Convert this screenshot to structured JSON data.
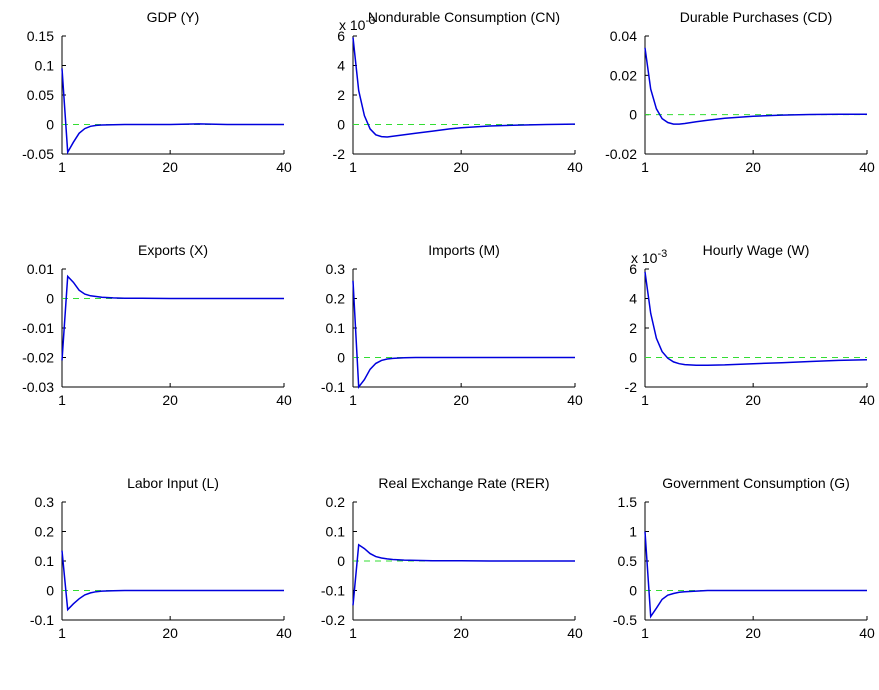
{
  "colors": {
    "series": "#0000dd",
    "zero_line": "#33dd33",
    "axes": "#000000"
  },
  "chart_data": [
    {
      "type": "line",
      "title": "GDP (Y)",
      "xlim": [
        1,
        40
      ],
      "ylim": [
        -0.05,
        0.15
      ],
      "xticks": [
        "1",
        "20",
        "40"
      ],
      "yticks": [
        "-0.05",
        "0",
        "0.05",
        "0.1",
        "0.15"
      ],
      "ytick_values": [
        -0.05,
        0,
        0.05,
        0.1,
        0.15
      ],
      "exponent_label": "",
      "series": [
        {
          "x": [
            1,
            2,
            3,
            4,
            5,
            6,
            7,
            8,
            10,
            12,
            15,
            20,
            25,
            30,
            35,
            40
          ],
          "values": [
            0.095,
            -0.047,
            -0.03,
            -0.015,
            -0.007,
            -0.003,
            -0.0015,
            -0.0008,
            -0.0003,
            0,
            0,
            0,
            0.001,
            0,
            0,
            0
          ]
        }
      ]
    },
    {
      "type": "line",
      "title": "Nondurable Consumption (CN)",
      "xlim": [
        1,
        40
      ],
      "ylim": [
        -2,
        6
      ],
      "xticks": [
        "1",
        "20",
        "40"
      ],
      "yticks": [
        "-2",
        "0",
        "2",
        "4",
        "6"
      ],
      "ytick_values": [
        -2,
        0,
        2,
        4,
        6
      ],
      "exponent_label": "x 10-3",
      "series": [
        {
          "x": [
            1,
            2,
            3,
            4,
            5,
            6,
            7,
            8,
            10,
            12,
            15,
            18,
            20,
            25,
            30,
            35,
            40
          ],
          "values": [
            5.9,
            2.3,
            0.6,
            -0.3,
            -0.7,
            -0.82,
            -0.85,
            -0.8,
            -0.7,
            -0.6,
            -0.45,
            -0.3,
            -0.22,
            -0.1,
            -0.04,
            0,
            0.03
          ]
        }
      ]
    },
    {
      "type": "line",
      "title": "Durable Purchases (CD)",
      "xlim": [
        1,
        40
      ],
      "ylim": [
        -0.02,
        0.04
      ],
      "xticks": [
        "1",
        "20",
        "40"
      ],
      "yticks": [
        "-0.02",
        "0",
        "0.02",
        "0.04"
      ],
      "ytick_values": [
        -0.02,
        0,
        0.02,
        0.04
      ],
      "exponent_label": "",
      "series": [
        {
          "x": [
            1,
            2,
            3,
            4,
            5,
            6,
            7,
            8,
            10,
            12,
            15,
            20,
            25,
            30,
            35,
            40
          ],
          "values": [
            0.034,
            0.013,
            0.003,
            -0.002,
            -0.004,
            -0.0048,
            -0.0048,
            -0.0045,
            -0.0036,
            -0.0028,
            -0.0018,
            -0.0008,
            -0.0002,
            0.0001,
            0.0002,
            0.0002
          ]
        }
      ]
    },
    {
      "type": "line",
      "title": "Exports (X)",
      "xlim": [
        1,
        40
      ],
      "ylim": [
        -0.03,
        0.01
      ],
      "xticks": [
        "1",
        "20",
        "40"
      ],
      "yticks": [
        "-0.03",
        "-0.02",
        "-0.01",
        "0",
        "0.01"
      ],
      "ytick_values": [
        -0.03,
        -0.02,
        -0.01,
        0,
        0.01
      ],
      "exponent_label": "",
      "series": [
        {
          "x": [
            1,
            2,
            3,
            4,
            5,
            6,
            8,
            10,
            12,
            15,
            20,
            25,
            30,
            35,
            40
          ],
          "values": [
            -0.021,
            0.0075,
            0.0055,
            0.0028,
            0.0015,
            0.0009,
            0.0004,
            0.0002,
            0.0001,
            0.0001,
            0,
            0,
            0,
            0,
            0
          ]
        }
      ]
    },
    {
      "type": "line",
      "title": "Imports (M)",
      "xlim": [
        1,
        40
      ],
      "ylim": [
        -0.1,
        0.3
      ],
      "xticks": [
        "1",
        "20",
        "40"
      ],
      "yticks": [
        "-0.1",
        "0",
        "0.1",
        "0.2",
        "0.3"
      ],
      "ytick_values": [
        -0.1,
        0,
        0.1,
        0.2,
        0.3
      ],
      "exponent_label": "",
      "series": [
        {
          "x": [
            1,
            2,
            3,
            4,
            5,
            6,
            7,
            8,
            10,
            12,
            15,
            20,
            25,
            30,
            35,
            40
          ],
          "values": [
            0.26,
            -0.1,
            -0.075,
            -0.04,
            -0.02,
            -0.01,
            -0.005,
            -0.003,
            -0.001,
            0,
            0,
            0,
            0,
            0,
            0,
            0
          ]
        }
      ]
    },
    {
      "type": "line",
      "title": "Hourly Wage (W)",
      "xlim": [
        1,
        40
      ],
      "ylim": [
        -2,
        6
      ],
      "xticks": [
        "1",
        "20",
        "40"
      ],
      "yticks": [
        "-2",
        "0",
        "2",
        "4",
        "6"
      ],
      "ytick_values": [
        -2,
        0,
        2,
        4,
        6
      ],
      "exponent_label": "x 10-3",
      "series": [
        {
          "x": [
            1,
            2,
            3,
            4,
            5,
            6,
            7,
            8,
            10,
            12,
            15,
            20,
            25,
            30,
            35,
            40
          ],
          "values": [
            5.8,
            3.0,
            1.3,
            0.4,
            -0.05,
            -0.3,
            -0.42,
            -0.48,
            -0.52,
            -0.52,
            -0.5,
            -0.42,
            -0.35,
            -0.27,
            -0.2,
            -0.15
          ]
        }
      ]
    },
    {
      "type": "line",
      "title": "Labor Input (L)",
      "xlim": [
        1,
        40
      ],
      "ylim": [
        -0.1,
        0.3
      ],
      "xticks": [
        "1",
        "20",
        "40"
      ],
      "yticks": [
        "-0.1",
        "0",
        "0.1",
        "0.2",
        "0.3"
      ],
      "ytick_values": [
        -0.1,
        0,
        0.1,
        0.2,
        0.3
      ],
      "exponent_label": "",
      "series": [
        {
          "x": [
            1,
            2,
            3,
            4,
            5,
            6,
            7,
            8,
            10,
            12,
            15,
            20,
            25,
            30,
            35,
            40
          ],
          "values": [
            0.135,
            -0.065,
            -0.045,
            -0.028,
            -0.015,
            -0.008,
            -0.004,
            -0.002,
            -0.001,
            0,
            0,
            0,
            0,
            0,
            0,
            0
          ]
        }
      ]
    },
    {
      "type": "line",
      "title": "Real Exchange Rate (RER)",
      "xlim": [
        1,
        40
      ],
      "ylim": [
        -0.2,
        0.2
      ],
      "xticks": [
        "1",
        "20",
        "40"
      ],
      "yticks": [
        "-0.2",
        "-0.1",
        "0",
        "0.1",
        "0.2"
      ],
      "ytick_values": [
        -0.2,
        -0.1,
        0,
        0.1,
        0.2
      ],
      "exponent_label": "",
      "series": [
        {
          "x": [
            1,
            2,
            3,
            4,
            5,
            6,
            7,
            8,
            10,
            12,
            15,
            20,
            25,
            30,
            35,
            40
          ],
          "values": [
            -0.15,
            0.055,
            0.042,
            0.025,
            0.015,
            0.01,
            0.007,
            0.005,
            0.003,
            0.002,
            0.001,
            0.001,
            0,
            0,
            0,
            0
          ]
        }
      ]
    },
    {
      "type": "line",
      "title": "Government Consumption (G)",
      "xlim": [
        1,
        40
      ],
      "ylim": [
        -0.5,
        1.5
      ],
      "xticks": [
        "1",
        "20",
        "40"
      ],
      "yticks": [
        "-0.5",
        "0",
        "0.5",
        "1",
        "1.5"
      ],
      "ytick_values": [
        -0.5,
        0,
        0.5,
        1,
        1.5
      ],
      "exponent_label": "",
      "series": [
        {
          "x": [
            1,
            2,
            3,
            4,
            5,
            6,
            7,
            8,
            10,
            12,
            15,
            20,
            25,
            30,
            35,
            40
          ],
          "values": [
            1.0,
            -0.44,
            -0.3,
            -0.15,
            -0.08,
            -0.05,
            -0.03,
            -0.02,
            -0.01,
            0,
            0,
            0,
            0,
            0,
            0,
            0
          ]
        }
      ]
    }
  ]
}
